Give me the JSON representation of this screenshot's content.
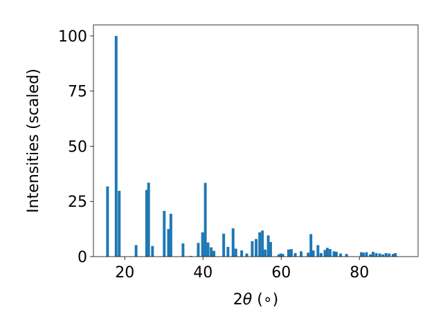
{
  "chart_data": {
    "type": "bar",
    "xlabel_prefix": "2",
    "xlabel_symbol": "θ",
    "xlabel_suffix": " (∘)",
    "ylabel": "Intensities (scaled)",
    "xlim": [
      12,
      95
    ],
    "ylim": [
      0,
      105
    ],
    "xticks": [
      20,
      40,
      60,
      80
    ],
    "yticks": [
      0,
      25,
      50,
      75,
      100
    ],
    "bar_color": "#1f77b4",
    "bar_width_deg": 0.7,
    "grid": false,
    "x": [
      15.6,
      17.8,
      18.6,
      22.9,
      25.6,
      26.1,
      27.1,
      30.1,
      31.2,
      31.8,
      34.9,
      36.9,
      38.8,
      39.9,
      40.6,
      41.3,
      42.1,
      42.8,
      45.3,
      46.4,
      47.7,
      48.4,
      49.9,
      51.2,
      52.6,
      53.6,
      54.5,
      55.2,
      55.9,
      56.7,
      57.3,
      59.4,
      59.9,
      60.4,
      61.9,
      62.6,
      63.6,
      65.1,
      66.9,
      67.6,
      68.2,
      69.4,
      70.2,
      71.2,
      71.8,
      72.5,
      73.5,
      74.1,
      75.2,
      76.7,
      80.5,
      81.0,
      81.8,
      82.8,
      83.5,
      84.3,
      85.2,
      86.0,
      86.8,
      87.6,
      88.6,
      89.2
    ],
    "values": [
      31.8,
      100,
      29.8,
      5.2,
      30.2,
      33.5,
      4.8,
      20.7,
      12.5,
      19.4,
      6.0,
      0.3,
      6.2,
      11.0,
      33.4,
      6.4,
      4.2,
      2.6,
      10.4,
      4.4,
      12.8,
      3.6,
      2.8,
      1.4,
      7.0,
      8.0,
      11.0,
      11.8,
      3.2,
      9.6,
      6.6,
      1.0,
      1.4,
      1.2,
      3.2,
      3.4,
      1.6,
      2.4,
      1.8,
      10.2,
      2.8,
      5.2,
      1.6,
      3.0,
      4.0,
      3.4,
      2.4,
      2.2,
      1.4,
      1.2,
      2.0,
      1.8,
      2.0,
      1.0,
      2.2,
      1.6,
      1.4,
      1.0,
      1.6,
      1.4,
      1.2,
      1.6
    ]
  }
}
